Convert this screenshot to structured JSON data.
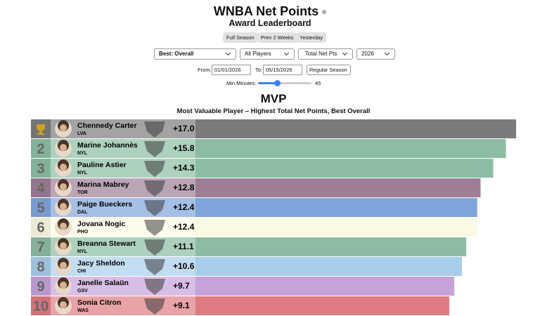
{
  "header": {
    "title": "WNBA Net Points",
    "subtitle": "Award Leaderboard"
  },
  "range_buttons": [
    "Full Season",
    "Prev 2 Weeks",
    "Yesterday"
  ],
  "filters": {
    "stat": "Best: Overall",
    "players": "All Players",
    "metric": "Total Net Pts",
    "season": "2026",
    "from_label": "From:",
    "from": "01/01/2026",
    "to_label": "To:",
    "to": "05/15/2026",
    "season_type": "Regular Season",
    "min_minutes_label": "Min Minutes:",
    "min_minutes": 45
  },
  "award": {
    "title": "MVP",
    "subtitle": "Most Valuable Player – Highest Total Net Points, Best Overall"
  },
  "leaderboard": {
    "rows": [
      {
        "name": "Chennedy Carter",
        "team": "LVA",
        "value": 17.0,
        "value_label": "+17.0",
        "color": "#7b7b7b"
      },
      {
        "rank": 2,
        "name": "Marine Johannès",
        "team": "NYL",
        "value": 15.8,
        "value_label": "+15.8",
        "color": "#8cbda3"
      },
      {
        "rank": 3,
        "name": "Pauline Astier",
        "team": "NYL",
        "value": 14.3,
        "value_label": "+14.3",
        "color": "#8cbda3"
      },
      {
        "rank": 4,
        "name": "Marina Mabrey",
        "team": "TOR",
        "value": 12.8,
        "value_label": "+12.8",
        "color": "#9d7e96"
      },
      {
        "rank": 5,
        "name": "Paige Bueckers",
        "team": "DAL",
        "value": 12.4,
        "value_label": "+12.4",
        "color": "#80a4dc"
      },
      {
        "rank": 6,
        "name": "Jovana Nogic",
        "team": "PHO",
        "value": 12.4,
        "value_label": "+12.4",
        "color": "#fbf9e4"
      },
      {
        "rank": 7,
        "name": "Breanna Stewart",
        "team": "NYL",
        "value": 11.1,
        "value_label": "+11.1",
        "color": "#8cbda3"
      },
      {
        "rank": 8,
        "name": "Jacy Sheldon",
        "team": "CHI",
        "value": 10.6,
        "value_label": "+10.6",
        "color": "#a8cdea"
      },
      {
        "rank": 9,
        "name": "Janelle Salaün",
        "team": "GSV",
        "value": 9.7,
        "value_label": "+9.7",
        "color": "#c6a2db"
      },
      {
        "rank": 10,
        "name": "Sonia Citron",
        "team": "WAS",
        "value": 9.1,
        "value_label": "+9.1",
        "color": "#df7b82"
      }
    ]
  }
}
